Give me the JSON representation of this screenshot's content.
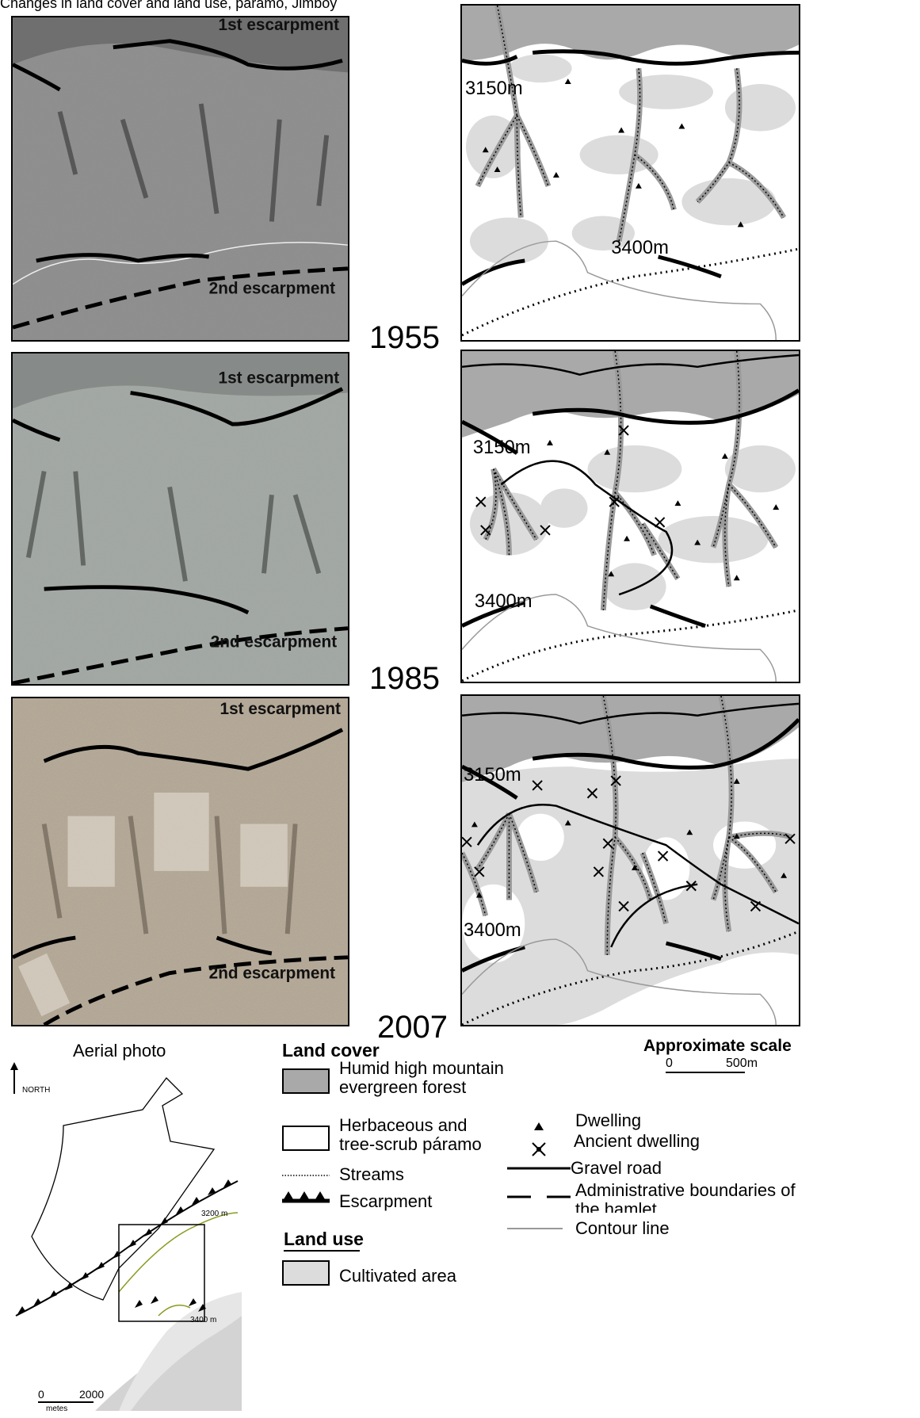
{
  "top_caption": "Changes in land cover and land use, páramo, Jimboy",
  "years": [
    "1955",
    "1985",
    "2007"
  ],
  "photo_labels": {
    "first": "1st escarpment",
    "second": "2nd escarpment"
  },
  "altitudes": {
    "low": "3150m",
    "high": "3400m"
  },
  "inset": {
    "title": "Aerial photo",
    "north": "NORTH",
    "alt_a": "3200 m",
    "alt_b": "3400 m",
    "scale_zero": "0",
    "scale_max": "2000",
    "scale_unit": "metes"
  },
  "legend": {
    "land_cover_title": "Land cover",
    "forest_l1": "Humid high mountain",
    "forest_l2": "evergreen forest",
    "paramo_l1": "Herbaceous and",
    "paramo_l2": "tree-scrub páramo",
    "streams": "Streams",
    "escarpment": "Escarpment",
    "land_use_title": "Land use",
    "cultivated": "Cultivated area",
    "scale_title": "Approximate scale",
    "scale_zero": "0",
    "scale_max": "500m",
    "dwelling": "Dwelling",
    "ancient_dwelling": "Ancient dwelling",
    "gravel_road": "Gravel road",
    "admin_l1": "Administrative boundaries of",
    "admin_l2": "the hamlet",
    "contour": "Contour line"
  },
  "colors": {
    "forest": "#a9a9a9",
    "cultivated": "#dcdcdc",
    "photo_1955": "#8c8c8c",
    "photo_1985": "#a3a8a5",
    "photo_2007": "#b9ad9b"
  }
}
